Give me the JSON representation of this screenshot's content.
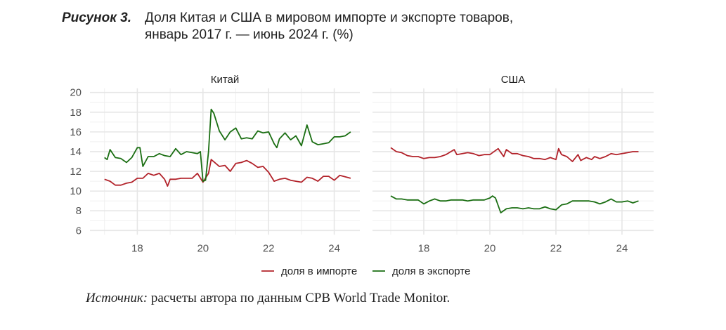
{
  "figure": {
    "label": "Рисунок 3.",
    "title_line1": "Доля Китая и США в мировом импорте и экспорте товаров,",
    "title_line2": "январь 2017 г. — июнь 2024 г. (%)"
  },
  "source": {
    "label": "Источник:",
    "text": " расчеты автора по данным CPB World Trade Monitor."
  },
  "colors": {
    "import": "#b2222a",
    "export": "#1a6e12"
  },
  "chart_data": {
    "type": "line",
    "ylim": [
      6,
      20
    ],
    "xlim": [
      17,
      24.5
    ],
    "y_ticks": [
      "6",
      "8",
      "10",
      "12",
      "14",
      "16",
      "18",
      "20"
    ],
    "y_tick_values": [
      6,
      8,
      10,
      12,
      14,
      16,
      18,
      20
    ],
    "x_ticks": [
      "18",
      "20",
      "22",
      "24"
    ],
    "x_tick_values": [
      18,
      20,
      22,
      24
    ],
    "grid": true,
    "legend": {
      "placement": "bottom",
      "entries": [
        "доля в импорте",
        "доля в экспорте"
      ]
    },
    "panels": [
      {
        "title": "Китай",
        "series": [
          {
            "name": "доля в импорте",
            "key": "import",
            "x": [
              17,
              17.17,
              17.33,
              17.5,
              17.67,
              17.83,
              18,
              18.17,
              18.33,
              18.5,
              18.67,
              18.83,
              18.92,
              19,
              19.17,
              19.33,
              19.5,
              19.67,
              19.83,
              20,
              20.17,
              20.25,
              20.5,
              20.67,
              20.83,
              21,
              21.17,
              21.33,
              21.5,
              21.67,
              21.83,
              22,
              22.17,
              22.33,
              22.5,
              22.67,
              22.83,
              23,
              23.17,
              23.33,
              23.5,
              23.67,
              23.83,
              24,
              24.17,
              24.5
            ],
            "y": [
              11.2,
              11.0,
              10.6,
              10.6,
              10.8,
              10.9,
              11.3,
              11.3,
              11.8,
              11.6,
              11.8,
              11.2,
              10.5,
              11.2,
              11.2,
              11.3,
              11.3,
              11.3,
              11.8,
              10.9,
              11.8,
              13.2,
              12.5,
              12.6,
              12.0,
              12.8,
              12.9,
              13.1,
              12.8,
              12.4,
              12.5,
              11.9,
              11.0,
              11.2,
              11.3,
              11.1,
              11.0,
              10.9,
              11.4,
              11.3,
              11.0,
              11.5,
              11.5,
              11.1,
              11.6,
              11.3
            ]
          },
          {
            "name": "доля в экспорте",
            "key": "export",
            "x": [
              17,
              17.08,
              17.17,
              17.33,
              17.5,
              17.67,
              17.83,
              18,
              18.08,
              18.17,
              18.33,
              18.5,
              18.67,
              18.83,
              19,
              19.17,
              19.33,
              19.5,
              19.67,
              19.83,
              19.92,
              20,
              20.08,
              20.17,
              20.25,
              20.33,
              20.5,
              20.67,
              20.83,
              21,
              21.17,
              21.33,
              21.5,
              21.67,
              21.83,
              22,
              22.17,
              22.25,
              22.33,
              22.5,
              22.67,
              22.83,
              23,
              23.17,
              23.33,
              23.5,
              23.67,
              23.83,
              24,
              24.17,
              24.33,
              24.5
            ],
            "y": [
              13.4,
              13.2,
              14.2,
              13.4,
              13.3,
              12.9,
              13.4,
              14.4,
              14.4,
              12.5,
              13.5,
              13.5,
              13.8,
              13.6,
              13.5,
              14.3,
              13.7,
              14.0,
              13.9,
              13.8,
              14.0,
              11.0,
              11.1,
              14.0,
              18.3,
              17.9,
              16.1,
              15.2,
              16.0,
              16.4,
              15.3,
              15.4,
              15.3,
              16.1,
              15.9,
              16.0,
              14.8,
              14.4,
              15.3,
              15.9,
              15.2,
              15.6,
              14.6,
              16.7,
              15.0,
              14.7,
              14.8,
              14.9,
              15.5,
              15.5,
              15.6,
              16.0
            ]
          }
        ]
      },
      {
        "title": "США",
        "series": [
          {
            "name": "доля в импорте",
            "key": "import",
            "x": [
              17,
              17.17,
              17.33,
              17.5,
              17.67,
              17.83,
              18,
              18.17,
              18.33,
              18.5,
              18.67,
              18.92,
              19,
              19.17,
              19.33,
              19.5,
              19.67,
              19.83,
              20,
              20.25,
              20.42,
              20.5,
              20.67,
              20.83,
              21,
              21.17,
              21.33,
              21.5,
              21.67,
              21.83,
              22,
              22.08,
              22.17,
              22.33,
              22.5,
              22.67,
              22.75,
              22.92,
              23.08,
              23.17,
              23.33,
              23.5,
              23.67,
              23.83,
              24,
              24.17,
              24.33,
              24.5
            ],
            "y": [
              14.4,
              14.0,
              13.9,
              13.6,
              13.5,
              13.5,
              13.3,
              13.4,
              13.4,
              13.5,
              13.7,
              14.2,
              13.7,
              13.8,
              13.9,
              13.8,
              13.6,
              13.7,
              13.7,
              14.3,
              13.5,
              14.2,
              13.8,
              13.8,
              13.6,
              13.5,
              13.3,
              13.3,
              13.2,
              13.4,
              13.2,
              14.3,
              13.7,
              13.5,
              13.0,
              13.7,
              13.1,
              13.4,
              13.2,
              13.5,
              13.3,
              13.5,
              13.8,
              13.7,
              13.8,
              13.9,
              14.0,
              14.0
            ]
          },
          {
            "name": "доля в экспорте",
            "key": "export",
            "x": [
              17,
              17.17,
              17.33,
              17.5,
              17.67,
              17.83,
              18,
              18.17,
              18.33,
              18.5,
              18.67,
              18.83,
              19,
              19.17,
              19.33,
              19.5,
              19.67,
              19.83,
              20,
              20.08,
              20.17,
              20.33,
              20.5,
              20.67,
              20.83,
              21,
              21.17,
              21.33,
              21.5,
              21.67,
              21.83,
              22,
              22.17,
              22.33,
              22.5,
              22.67,
              22.83,
              23,
              23.17,
              23.33,
              23.5,
              23.67,
              23.83,
              24,
              24.17,
              24.33,
              24.5
            ],
            "y": [
              9.5,
              9.2,
              9.2,
              9.1,
              9.1,
              9.1,
              8.7,
              9.0,
              9.2,
              9.0,
              9.0,
              9.1,
              9.1,
              9.1,
              9.0,
              9.1,
              9.1,
              9.1,
              9.3,
              9.5,
              9.3,
              7.8,
              8.2,
              8.3,
              8.3,
              8.2,
              8.3,
              8.2,
              8.2,
              8.4,
              8.2,
              8.1,
              8.6,
              8.7,
              9.0,
              9.0,
              9.0,
              9.0,
              8.9,
              8.7,
              8.9,
              9.2,
              8.9,
              8.9,
              9.0,
              8.8,
              9.0
            ]
          }
        ]
      }
    ]
  }
}
